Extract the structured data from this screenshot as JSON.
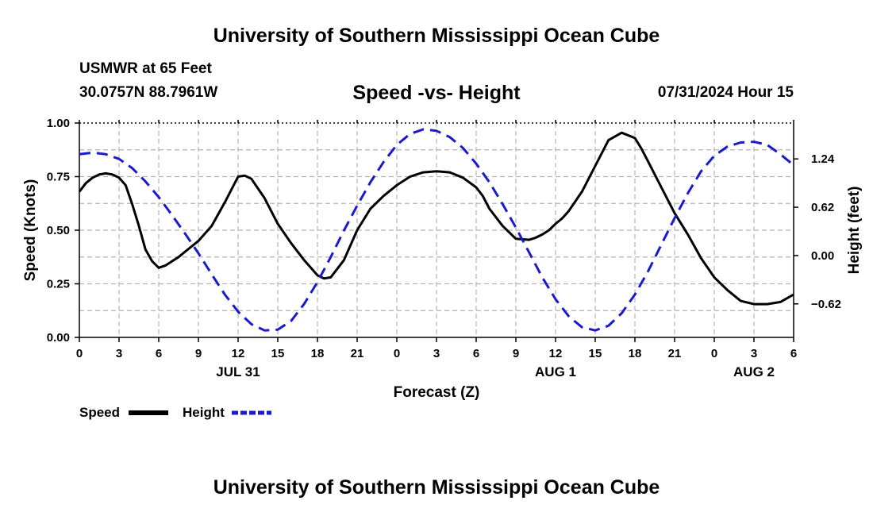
{
  "page": {
    "top_title": "University of Southern Mississippi Ocean Cube",
    "bottom_title": "University of Southern Mississippi Ocean Cube",
    "station": "USMWR at 65 Feet",
    "coords": "30.0757N  88.7961W",
    "timestamp": "07/31/2024 Hour 15"
  },
  "colors": {
    "speed": "#000000",
    "height": "#1a1acc",
    "grid": "#b4b4b4"
  },
  "chart_data": {
    "type": "line",
    "title": "Speed -vs- Height",
    "xlabel": "Forecast (Z)",
    "ylabel": "Speed (Knots)",
    "y2label": "Height (feet)",
    "x_range_hours": [
      0,
      54
    ],
    "ylim": [
      0,
      1.0
    ],
    "y2lim": [
      -1.05,
      1.7
    ],
    "x_ticks": [
      0,
      3,
      6,
      9,
      12,
      15,
      18,
      21,
      24,
      27,
      30,
      33,
      36,
      39,
      42,
      45,
      48,
      51,
      54
    ],
    "x_tick_labels": [
      "0",
      "3",
      "6",
      "9",
      "12",
      "15",
      "18",
      "21",
      "0",
      "3",
      "6",
      "9",
      "12",
      "15",
      "18",
      "21",
      "0",
      "3",
      "6"
    ],
    "date_labels": [
      {
        "hour": 12,
        "label": "JUL 31"
      },
      {
        "hour": 36,
        "label": "AUG 1"
      },
      {
        "hour": 51,
        "label": "AUG 2"
      }
    ],
    "y_ticks": [
      0.0,
      0.25,
      0.5,
      0.75,
      1.0
    ],
    "y_tick_labels": [
      "0.00",
      "0.25",
      "0.50",
      "0.75",
      "1.00"
    ],
    "y2_ticks": [
      -0.62,
      0.0,
      0.62,
      1.24
    ],
    "y2_tick_labels": [
      "−0.62",
      "0.00",
      "0.62",
      "1.24"
    ],
    "legend": [
      {
        "name": "Speed",
        "style": "solid"
      },
      {
        "name": "Height",
        "style": "dashed"
      }
    ],
    "series": [
      {
        "name": "Speed",
        "axis": "left",
        "style": "solid",
        "x": [
          0,
          0.5,
          1,
          1.5,
          2,
          2.5,
          3,
          3.5,
          4,
          4.5,
          5,
          5.5,
          6,
          6.5,
          7,
          7.5,
          8,
          9,
          10,
          11,
          12,
          12.5,
          13,
          14,
          15,
          16,
          17,
          18,
          18.5,
          19,
          20,
          21,
          22,
          23,
          24,
          25,
          26,
          27,
          28,
          29,
          30,
          30.5,
          31,
          32,
          33,
          34,
          34.5,
          35,
          35.5,
          36,
          36.5,
          37,
          38,
          39,
          40,
          41,
          42,
          42.5,
          43,
          44,
          45,
          46,
          47,
          48,
          49,
          50,
          51,
          52,
          53,
          54
        ],
        "values": [
          0.68,
          0.72,
          0.745,
          0.76,
          0.765,
          0.76,
          0.745,
          0.71,
          0.62,
          0.52,
          0.41,
          0.355,
          0.325,
          0.335,
          0.355,
          0.375,
          0.4,
          0.45,
          0.52,
          0.63,
          0.75,
          0.755,
          0.74,
          0.65,
          0.53,
          0.44,
          0.36,
          0.29,
          0.275,
          0.28,
          0.36,
          0.5,
          0.6,
          0.66,
          0.71,
          0.75,
          0.77,
          0.775,
          0.77,
          0.745,
          0.7,
          0.66,
          0.6,
          0.52,
          0.46,
          0.455,
          0.465,
          0.48,
          0.5,
          0.53,
          0.555,
          0.59,
          0.68,
          0.8,
          0.92,
          0.955,
          0.93,
          0.88,
          0.82,
          0.7,
          0.58,
          0.48,
          0.37,
          0.28,
          0.22,
          0.17,
          0.155,
          0.155,
          0.165,
          0.2
        ]
      },
      {
        "name": "Height",
        "axis": "right",
        "style": "dashed",
        "x": [
          0,
          1,
          2,
          3,
          4,
          5,
          6,
          7,
          8,
          9,
          10,
          11,
          12,
          13,
          14,
          15,
          16,
          17,
          18,
          19,
          20,
          21,
          22,
          23,
          24,
          25,
          26,
          27,
          28,
          29,
          30,
          31,
          32,
          33,
          34,
          35,
          36,
          37,
          38,
          39,
          40,
          41,
          42,
          43,
          44,
          45,
          46,
          47,
          48,
          49,
          50,
          51,
          52,
          53,
          54
        ],
        "values": [
          1.3,
          1.32,
          1.3,
          1.24,
          1.12,
          0.95,
          0.75,
          0.52,
          0.28,
          0.03,
          -0.24,
          -0.5,
          -0.72,
          -0.88,
          -0.96,
          -0.95,
          -0.84,
          -0.62,
          -0.34,
          -0.02,
          0.32,
          0.64,
          0.94,
          1.2,
          1.42,
          1.56,
          1.62,
          1.6,
          1.52,
          1.38,
          1.18,
          0.94,
          0.66,
          0.36,
          0.04,
          -0.28,
          -0.56,
          -0.78,
          -0.92,
          -0.96,
          -0.9,
          -0.74,
          -0.5,
          -0.2,
          0.14,
          0.48,
          0.8,
          1.08,
          1.28,
          1.4,
          1.45,
          1.46,
          1.42,
          1.3,
          1.16
        ]
      }
    ]
  }
}
